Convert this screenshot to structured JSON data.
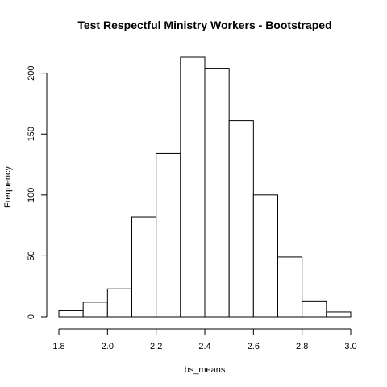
{
  "chart_data": {
    "type": "bar",
    "title": "Test Respectful Ministry Workers - Bootstraped",
    "xlabel": "bs_means",
    "ylabel": "Frequency",
    "bin_edges": [
      1.8,
      1.9,
      2.0,
      2.1,
      2.2,
      2.3,
      2.4,
      2.5,
      2.6,
      2.7,
      2.8,
      2.9,
      3.0
    ],
    "values": [
      5,
      12,
      23,
      82,
      134,
      213,
      204,
      161,
      100,
      49,
      13,
      4
    ],
    "xlim": [
      1.8,
      3.0
    ],
    "ylim": [
      0,
      213
    ],
    "xticks": [
      1.8,
      2.0,
      2.2,
      2.4,
      2.6,
      2.8,
      3.0
    ],
    "xtick_labels": [
      "1.8",
      "2.0",
      "2.2",
      "2.4",
      "2.6",
      "2.8",
      "3.0"
    ],
    "yticks": [
      0,
      50,
      100,
      150,
      200
    ],
    "ytick_labels": [
      "0",
      "50",
      "100",
      "150",
      "200"
    ],
    "grid": false,
    "legend": "none"
  }
}
